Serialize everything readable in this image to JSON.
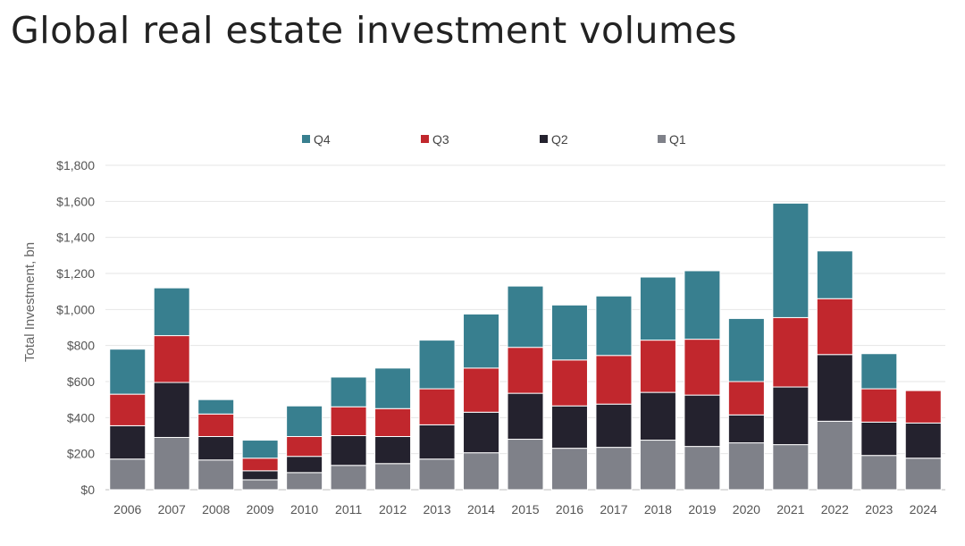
{
  "chart_data": {
    "type": "bar",
    "stacked": true,
    "title": "Global real estate investment volumes",
    "ylabel": "Total Investment, bn",
    "xlabel": "",
    "ylim": [
      0,
      1800
    ],
    "yticks": [
      0,
      200,
      400,
      600,
      800,
      1000,
      1200,
      1400,
      1600,
      1800
    ],
    "ytick_labels": [
      "$0",
      "$200",
      "$400",
      "$600",
      "$800",
      "$1,000",
      "$1,200",
      "$1,400",
      "$1,600",
      "$1,800"
    ],
    "grid": "horizontal",
    "legend_position": "top-center",
    "categories": [
      "2006",
      "2007",
      "2008",
      "2009",
      "2010",
      "2011",
      "2012",
      "2013",
      "2014",
      "2015",
      "2016",
      "2017",
      "2018",
      "2019",
      "2020",
      "2021",
      "2022",
      "2023",
      "2024"
    ],
    "series": [
      {
        "name": "Q1",
        "color": "#7f8189",
        "values": [
          170,
          290,
          165,
          55,
          95,
          135,
          145,
          170,
          205,
          280,
          230,
          235,
          275,
          240,
          260,
          250,
          380,
          190,
          175
        ]
      },
      {
        "name": "Q2",
        "color": "#24222e",
        "values": [
          185,
          305,
          130,
          50,
          90,
          165,
          150,
          190,
          225,
          255,
          235,
          240,
          265,
          285,
          155,
          320,
          370,
          185,
          195
        ]
      },
      {
        "name": "Q3",
        "color": "#c1272d",
        "values": [
          175,
          260,
          125,
          70,
          110,
          160,
          155,
          200,
          245,
          255,
          255,
          270,
          290,
          310,
          185,
          385,
          310,
          185,
          180
        ]
      },
      {
        "name": "Q4",
        "color": "#387f8f",
        "values": [
          250,
          265,
          80,
          100,
          170,
          165,
          225,
          270,
          300,
          340,
          305,
          330,
          350,
          380,
          350,
          635,
          265,
          195,
          0
        ]
      }
    ],
    "legend_order": [
      "Q4",
      "Q3",
      "Q2",
      "Q1"
    ]
  }
}
